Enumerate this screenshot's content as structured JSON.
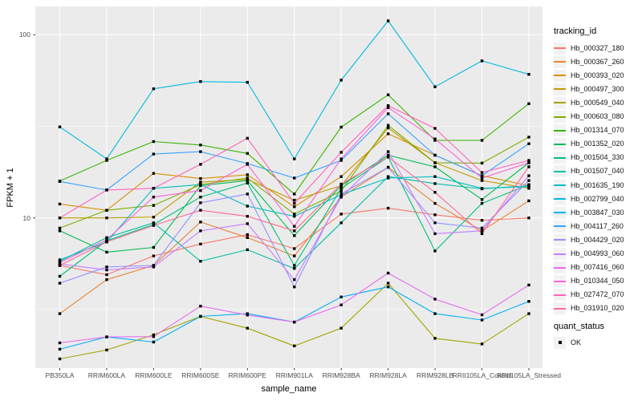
{
  "chart_data": {
    "type": "line",
    "xlabel": "sample_name",
    "ylabel": "FPKM + 1",
    "x_categories": [
      "PB350LA",
      "RRIM600LA",
      "RRIM600LE",
      "RRIM600SE",
      "RRIM600PE",
      "RRIM901LA",
      "RRIM928BA",
      "RRIM928LA",
      "RRIM928LB",
      "RRII105LA_Control",
      "RRII105LA_Stressed"
    ],
    "y_scale": "log10",
    "y_ticks": [
      100,
      10
    ],
    "y_tick_labels": [
      "100",
      "10"
    ],
    "y_minor_gridlines": [
      31.62,
      3.162
    ],
    "ylim": [
      1.5,
      143
    ],
    "grid": true,
    "legend_position": "right",
    "legend_title": "tracking_id",
    "point_shape": "filled-square",
    "point_color": "#000000",
    "series": [
      {
        "name": "Hb_000327_180",
        "color": "#F8766D",
        "values": [
          5.5,
          4.9,
          6.2,
          7.2,
          8.1,
          6.8,
          10.5,
          11.3,
          10.4,
          9.7,
          10.0
        ]
      },
      {
        "name": "Hb_000367_260",
        "color": "#EA8331",
        "values": [
          3.0,
          4.6,
          5.5,
          9.5,
          7.8,
          6.2,
          13.0,
          18.9,
          12.0,
          8.5,
          12.4
        ]
      },
      {
        "name": "Hb_000393_020",
        "color": "#D89000",
        "values": [
          11.9,
          11.0,
          17.5,
          16.4,
          17.2,
          11.5,
          16.8,
          28.8,
          22.0,
          17.0,
          15.0
        ]
      },
      {
        "name": "Hb_000497_300",
        "color": "#C09B00",
        "values": [
          10.0,
          10.0,
          10.1,
          15.7,
          16.2,
          12.5,
          15.0,
          31.0,
          20.0,
          16.0,
          14.5
        ]
      },
      {
        "name": "Hb_000549_040",
        "color": "#A3A500",
        "values": [
          1.7,
          1.9,
          2.3,
          2.9,
          2.5,
          2.0,
          2.5,
          4.4,
          2.2,
          2.05,
          3.0
        ]
      },
      {
        "name": "Hb_000603_080",
        "color": "#7CAE00",
        "values": [
          8.8,
          11.0,
          11.7,
          15.2,
          16.5,
          10.5,
          14.0,
          32.0,
          20.0,
          19.9,
          27.6
        ]
      },
      {
        "name": "Hb_001314_070",
        "color": "#39B600",
        "values": [
          15.9,
          20.6,
          26.1,
          25.0,
          22.5,
          13.5,
          31.3,
          47.0,
          26.5,
          26.5,
          42.0
        ]
      },
      {
        "name": "Hb_001352_020",
        "color": "#00BB4E",
        "values": [
          8.5,
          6.5,
          6.9,
          15.0,
          16.0,
          8.0,
          15.0,
          22.0,
          19.0,
          12.6,
          20.0
        ]
      },
      {
        "name": "Hb_001504_330",
        "color": "#00BF7D",
        "values": [
          4.8,
          7.5,
          9.2,
          13.0,
          15.5,
          5.5,
          14.5,
          21.5,
          6.6,
          12.0,
          15.2
        ]
      },
      {
        "name": "Hb_001507_040",
        "color": "#00C1A3",
        "values": [
          5.8,
          7.8,
          9.4,
          5.8,
          6.7,
          5.3,
          9.4,
          16.8,
          15.4,
          14.4,
          15.0
        ]
      },
      {
        "name": "Hb_001635_190",
        "color": "#00BFC4",
        "values": [
          5.9,
          7.4,
          14.5,
          15.2,
          11.6,
          10.2,
          13.4,
          16.5,
          16.8,
          14.5,
          14.8
        ]
      },
      {
        "name": "Hb_002799_040",
        "color": "#00BAE0",
        "values": [
          31.4,
          21.0,
          50.7,
          55.5,
          55.0,
          21.0,
          56.5,
          119.0,
          52.0,
          72.0,
          60.8
        ]
      },
      {
        "name": "Hb_003847_030",
        "color": "#00B0F6",
        "values": [
          1.92,
          2.24,
          2.1,
          2.9,
          3.0,
          2.7,
          3.7,
          4.2,
          3.0,
          2.77,
          3.5
        ]
      },
      {
        "name": "Hb_004117_260",
        "color": "#35A2FF",
        "values": [
          15.8,
          14.2,
          22.3,
          23.0,
          19.8,
          16.5,
          20.6,
          37.0,
          22.0,
          17.0,
          25.4
        ]
      },
      {
        "name": "Hb_004429_020",
        "color": "#9590FF",
        "values": [
          4.4,
          5.4,
          5.5,
          12.1,
          13.5,
          4.2,
          13.5,
          18.9,
          9.4,
          8.8,
          16.0
        ]
      },
      {
        "name": "Hb_004993_060",
        "color": "#C77CFF",
        "values": [
          5.6,
          5.2,
          5.4,
          8.5,
          9.3,
          4.6,
          13.0,
          23.0,
          8.2,
          8.5,
          17.0
        ]
      },
      {
        "name": "Hb_007416_060",
        "color": "#E76BF3",
        "values": [
          2.08,
          2.24,
          2.25,
          3.3,
          2.95,
          2.7,
          3.35,
          5.0,
          3.6,
          2.96,
          4.3
        ]
      },
      {
        "name": "Hb_010344_050",
        "color": "#FA62DB",
        "values": [
          5.7,
          7.6,
          13.0,
          14.1,
          19.6,
          9.0,
          21.0,
          40.0,
          27.0,
          16.5,
          20.0
        ]
      },
      {
        "name": "Hb_027472_070",
        "color": "#FF62BC",
        "values": [
          10.0,
          14.2,
          14.5,
          19.6,
          27.2,
          12.0,
          22.8,
          41.0,
          30.8,
          17.7,
          20.6
        ]
      },
      {
        "name": "Hb_031910_020",
        "color": "#FF6A98",
        "values": [
          5.5,
          7.4,
          9.1,
          11.0,
          10.2,
          8.5,
          15.3,
          21.5,
          13.8,
          8.2,
          19.0
        ]
      }
    ],
    "quant_status_legend": {
      "title": "quant_status",
      "items": [
        {
          "label": "OK",
          "marker": "black-square"
        }
      ]
    }
  },
  "style_colors": {
    "panel_background": "#EBEBEB",
    "gridline": "#FFFFFF",
    "tick_mark": "#333333",
    "tick_text": "#4D4D4D",
    "legend_key_background": "#F2F2F2"
  }
}
